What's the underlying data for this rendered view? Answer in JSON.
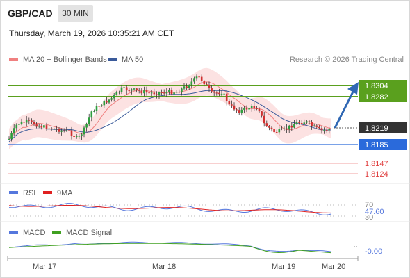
{
  "header": {
    "symbol": "GBP/CAD",
    "timeframe": "30 MIN",
    "timestamp": "Thursday, March 19, 2026 10:35:21 AM CET"
  },
  "legend": {
    "ma20_bb": "MA 20 + Bollinger Bands",
    "ma50": "MA 50",
    "credit": "Research © 2026 Trading Central"
  },
  "colors": {
    "ma20": "#f08080",
    "ma50": "#3a5a9a",
    "resistance": "#5aa01e",
    "support": "#2a6adb",
    "pivot_red": "#e04040",
    "current": "#333333",
    "rsi": "#5577dd",
    "rsi_ma": "#e02020",
    "macd": "#5577dd",
    "macd_signal": "#40a020"
  },
  "levels": [
    {
      "label": "1.8304",
      "type": "resistance"
    },
    {
      "label": "1.8282",
      "type": "resistance"
    },
    {
      "label": "1.8219",
      "type": "current"
    },
    {
      "label": "1.8185",
      "type": "support"
    },
    {
      "label": "1.8147",
      "type": "pivot"
    },
    {
      "label": "1.8124",
      "type": "pivot"
    }
  ],
  "rsi_panel": {
    "label": "RSI",
    "ma_label": "9MA",
    "levels": [
      "70",
      "47.60",
      "30"
    ]
  },
  "macd_panel": {
    "label": "MACD",
    "signal_label": "MACD Signal",
    "value": "-0.00"
  },
  "x_axis": [
    "Mar 17",
    "Mar 18",
    "Mar 19",
    "Mar 20"
  ]
}
